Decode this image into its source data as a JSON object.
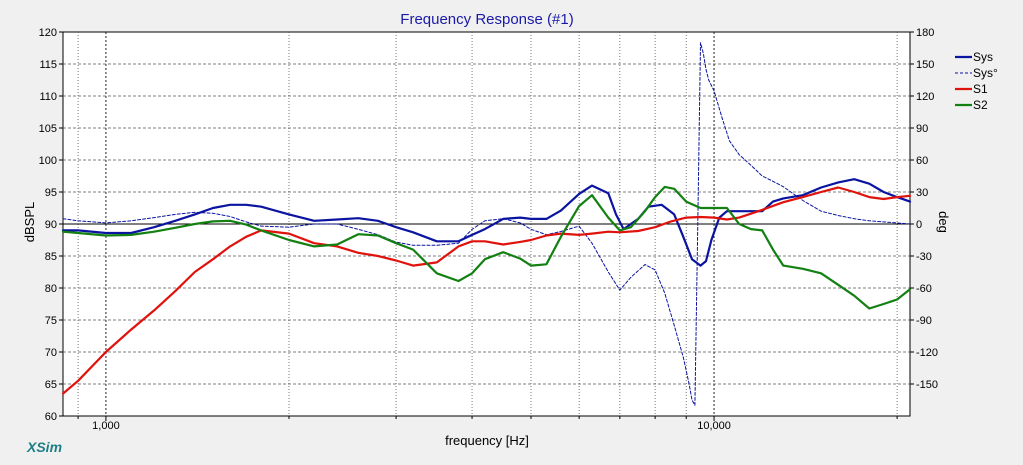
{
  "app_brand": "XSim",
  "chart_data": {
    "type": "line",
    "title": "Frequency Response (#1)",
    "xlabel": "frequency [Hz]",
    "ylabel": "dBSPL",
    "y2label": "deg",
    "x_scale": "log",
    "xlim": [
      850,
      21000
    ],
    "ylim": [
      60,
      120
    ],
    "y2lim": [
      -180,
      180
    ],
    "x_tick_labels": [
      {
        "value": 1000,
        "label": "1,000"
      },
      {
        "value": 10000,
        "label": "10,000"
      }
    ],
    "y_ticks": [
      60,
      65,
      70,
      75,
      80,
      85,
      90,
      95,
      100,
      105,
      110,
      115,
      120
    ],
    "y2_ticks": [
      -150,
      -120,
      -90,
      -60,
      -30,
      0,
      30,
      60,
      90,
      120,
      150,
      180
    ],
    "grid": true,
    "legend_position": "right",
    "series": [
      {
        "name": "Sys",
        "color": "#0a14a0",
        "style": "solid",
        "axis": "left",
        "x": [
          850,
          900,
          1000,
          1100,
          1200,
          1300,
          1400,
          1500,
          1600,
          1700,
          1800,
          2000,
          2200,
          2400,
          2600,
          2800,
          3000,
          3200,
          3500,
          3800,
          4000,
          4200,
          4500,
          4800,
          5000,
          5300,
          5600,
          6000,
          6300,
          6700,
          6900,
          7100,
          7500,
          7800,
          8200,
          8600,
          8900,
          9200,
          9500,
          9700,
          9900,
          10200,
          10500,
          11000,
          12000,
          12500,
          13000,
          14000,
          15000,
          16000,
          17000,
          18000,
          19000,
          20000,
          21000
        ],
        "y": [
          89,
          89,
          88.6,
          88.6,
          89.5,
          90.5,
          91.5,
          92.5,
          93,
          93,
          92.7,
          91.5,
          90.5,
          90.7,
          90.9,
          90.5,
          89.5,
          88.7,
          87.3,
          87.3,
          88.3,
          89.2,
          90.8,
          91,
          90.8,
          90.8,
          92.1,
          94.7,
          96,
          94.8,
          91.5,
          89.2,
          90.8,
          92.7,
          93,
          91.5,
          88,
          84.5,
          83.5,
          84.2,
          87.5,
          91,
          92,
          92,
          92,
          93.5,
          94,
          94.5,
          95.7,
          96.5,
          97,
          96.3,
          95,
          94.2,
          93.5
        ]
      },
      {
        "name": "Sys°",
        "color": "#0a14a0",
        "style": "dashed",
        "axis": "right",
        "x": [
          850,
          900,
          1000,
          1100,
          1200,
          1300,
          1400,
          1500,
          1600,
          1700,
          1800,
          2000,
          2200,
          2400,
          2600,
          2800,
          3000,
          3200,
          3500,
          3800,
          4000,
          4200,
          4500,
          4800,
          5000,
          5300,
          5600,
          6000,
          6300,
          6700,
          7000,
          7300,
          7700,
          8000,
          8300,
          8600,
          8900,
          9100,
          9200,
          9300,
          9400,
          9500,
          9600,
          9700,
          9800,
          10000,
          10300,
          10600,
          11000,
          11500,
          12000,
          12500,
          13000,
          14000,
          15000,
          16000,
          17000,
          18000,
          19000,
          20000,
          21000
        ],
        "y": [
          5,
          3,
          1,
          3,
          6,
          9,
          11,
          10,
          7,
          2,
          -2,
          -3,
          0,
          0,
          -5,
          -10,
          -17,
          -20,
          -20,
          -18,
          -5,
          3,
          5,
          1,
          -5,
          -10,
          -7,
          -2,
          -18,
          -45,
          -62,
          -50,
          -38,
          -43,
          -65,
          -95,
          -125,
          -150,
          -165,
          -170,
          -5,
          170,
          160,
          145,
          135,
          125,
          100,
          78,
          65,
          55,
          45,
          40,
          35,
          22,
          12,
          8,
          5,
          3,
          2,
          1,
          0
        ]
      },
      {
        "name": "S1",
        "color": "#e0120c",
        "style": "solid",
        "axis": "left",
        "x": [
          850,
          900,
          1000,
          1100,
          1200,
          1300,
          1400,
          1500,
          1600,
          1700,
          1800,
          2000,
          2200,
          2400,
          2600,
          2800,
          3000,
          3200,
          3500,
          3800,
          4000,
          4200,
          4500,
          4800,
          5000,
          5300,
          5600,
          6000,
          6300,
          6700,
          7000,
          7500,
          8000,
          8500,
          9000,
          9500,
          10000,
          10500,
          11000,
          12000,
          13000,
          14000,
          15000,
          16000,
          17000,
          18000,
          19000,
          20000,
          21000
        ],
        "y": [
          63.5,
          65.5,
          70,
          73.5,
          76.5,
          79.5,
          82.5,
          84.5,
          86.5,
          88,
          89,
          88.5,
          87,
          86.5,
          85.5,
          85,
          84.3,
          83.5,
          84,
          86.5,
          87.3,
          87.3,
          86.8,
          87.2,
          87.5,
          88.2,
          88.5,
          88.3,
          88.5,
          88.8,
          88.7,
          88.9,
          89.5,
          90.4,
          91,
          91.1,
          91,
          90.7,
          91,
          92.2,
          93.4,
          94.2,
          95,
          95.7,
          95,
          94.2,
          93.9,
          94.2,
          94.4
        ]
      },
      {
        "name": "S2",
        "color": "#138012",
        "style": "solid",
        "axis": "left",
        "x": [
          850,
          900,
          1000,
          1100,
          1200,
          1300,
          1400,
          1500,
          1600,
          1700,
          1800,
          2000,
          2200,
          2400,
          2600,
          2800,
          3000,
          3200,
          3500,
          3800,
          4000,
          4200,
          4500,
          4800,
          5000,
          5300,
          5600,
          6000,
          6300,
          6700,
          7000,
          7300,
          7700,
          8000,
          8300,
          8600,
          9000,
          9500,
          10000,
          10500,
          11000,
          11500,
          12000,
          12500,
          13000,
          14000,
          15000,
          16000,
          17000,
          18000,
          19000,
          20000,
          21000
        ],
        "y": [
          88.8,
          88.6,
          88.2,
          88.3,
          88.8,
          89.4,
          90,
          90.4,
          90.5,
          89.9,
          89,
          87.5,
          86.5,
          86.8,
          88.4,
          88.2,
          87,
          86,
          82.3,
          81.1,
          82.3,
          84.5,
          85.6,
          84.6,
          83.5,
          83.7,
          88,
          92.8,
          94.5,
          91,
          89,
          89.5,
          92,
          94.2,
          95.8,
          95.5,
          93.5,
          92.5,
          92.5,
          92.5,
          90,
          89.2,
          89,
          86,
          83.5,
          83,
          82.3,
          80.5,
          78.8,
          76.8,
          77.5,
          78.2,
          79.8
        ]
      }
    ]
  }
}
